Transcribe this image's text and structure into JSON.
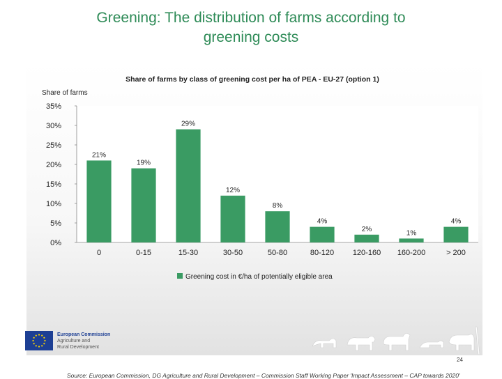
{
  "slide": {
    "title_line1": "Greening: The distribution of farms according to",
    "title_line2": "greening costs",
    "source": "Source: European Commission, DG Agriculture and Rural Development – Commission Staff Working Paper 'Impact Assessment – CAP towards 2020'",
    "page_number": "24"
  },
  "logo": {
    "line1": "European Commission",
    "line2": "Agriculture and",
    "line3": "Rural Development"
  },
  "colors": {
    "title": "#2e8b57",
    "bar": "#3a9b63",
    "flag": "#1d3f94"
  },
  "chart_data": {
    "type": "bar",
    "title": "Share of farms by class of greening cost per ha of PEA - EU-27 (option 1)",
    "ylabel": "Share of farms",
    "xlabel": "",
    "categories": [
      "0",
      "0-15",
      "15-30",
      "30-50",
      "50-80",
      "80-120",
      "120-160",
      "160-200",
      "> 200"
    ],
    "series": [
      {
        "name": "Greening cost in €/ha of potentially eligible area",
        "values": [
          21,
          19,
          29,
          12,
          8,
          4,
          2,
          1,
          4
        ]
      }
    ],
    "data_labels": [
      "21%",
      "19%",
      "29%",
      "12%",
      "8%",
      "4%",
      "2%",
      "1%",
      "4%"
    ],
    "ylim": [
      0,
      35
    ],
    "yticks": [
      "0%",
      "5%",
      "10%",
      "15%",
      "20%",
      "25%",
      "30%",
      "35%"
    ],
    "grid": false,
    "legend_position": "bottom"
  }
}
